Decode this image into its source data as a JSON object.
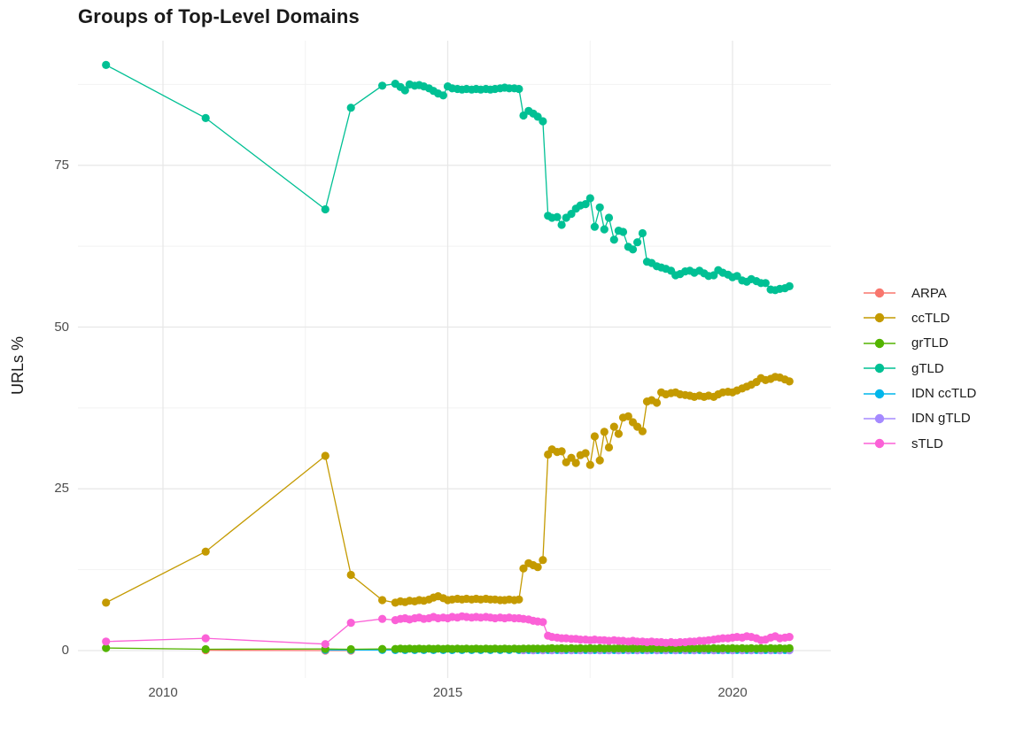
{
  "title": "Groups of Top-Level Domains",
  "chart_data": {
    "type": "line",
    "title": "Groups of Top-Level Domains",
    "xlabel": "",
    "ylabel": "URLs %",
    "x_ticks": [
      2010,
      2015,
      2020
    ],
    "x_minor_ticks": [
      2012.5,
      2017.5
    ],
    "y_ticks": [
      0,
      25,
      50,
      75
    ],
    "y_minor_ticks": [
      12.5,
      37.5,
      62.5,
      87.5
    ],
    "xlim": [
      2008.5,
      2021.75
    ],
    "ylim": [
      -3,
      94
    ],
    "grid": true,
    "legend_position": "right",
    "marker": "point-on-line",
    "draw_order": [
      "ARPA",
      "ccTLD",
      "IDN ccTLD",
      "IDN gTLD",
      "grTLD",
      "gTLD",
      "sTLD"
    ],
    "x": [
      2009,
      2010.75,
      2012.85,
      2013.3,
      2013.85,
      2014.08,
      2014.17,
      2014.25,
      2014.33,
      2014.42,
      2014.5,
      2014.58,
      2014.67,
      2014.75,
      2014.83,
      2014.92,
      2015,
      2015.08,
      2015.17,
      2015.25,
      2015.33,
      2015.42,
      2015.5,
      2015.58,
      2015.67,
      2015.75,
      2015.83,
      2015.92,
      2016,
      2016.08,
      2016.17,
      2016.25,
      2016.33,
      2016.42,
      2016.5,
      2016.58,
      2016.67,
      2016.76,
      2016.83,
      2016.92,
      2017,
      2017.08,
      2017.17,
      2017.25,
      2017.33,
      2017.42,
      2017.5,
      2017.58,
      2017.67,
      2017.75,
      2017.83,
      2017.92,
      2018,
      2018.08,
      2018.17,
      2018.25,
      2018.33,
      2018.42,
      2018.5,
      2018.58,
      2018.67,
      2018.75,
      2018.83,
      2018.92,
      2019,
      2019.08,
      2019.17,
      2019.25,
      2019.33,
      2019.42,
      2019.5,
      2019.58,
      2019.67,
      2019.75,
      2019.83,
      2019.92,
      2020,
      2020.08,
      2020.17,
      2020.25,
      2020.33,
      2020.42,
      2020.5,
      2020.58,
      2020.67,
      2020.75,
      2020.83,
      2020.92,
      2021
    ],
    "series": [
      {
        "name": "ARPA",
        "color": "#F8766D",
        "points": [
          [
            2010.75,
            0.05
          ],
          [
            2012.85,
            0.0
          ],
          [
            2013.3,
            0.0
          ]
        ]
      },
      {
        "name": "ccTLD",
        "color": "#C49A00",
        "y": [
          7.4,
          15.3,
          30.1,
          11.7,
          7.8,
          7.4,
          7.6,
          7.5,
          7.7,
          7.6,
          7.8,
          7.7,
          7.9,
          8.2,
          8.4,
          8.1,
          7.8,
          7.9,
          8.0,
          7.9,
          8.0,
          7.9,
          8.0,
          7.9,
          8.0,
          7.9,
          7.9,
          7.8,
          7.8,
          7.9,
          7.8,
          7.9,
          12.7,
          13.5,
          13.2,
          12.9,
          14.0,
          30.3,
          31.1,
          30.7,
          30.8,
          29.1,
          29.8,
          29.0,
          30.2,
          30.5,
          28.7,
          33.1,
          29.4,
          33.8,
          31.4,
          34.6,
          33.5,
          36.0,
          36.2,
          35.3,
          34.6,
          33.9,
          38.5,
          38.7,
          38.3,
          39.9,
          39.6,
          39.8,
          39.9,
          39.6,
          39.5,
          39.4,
          39.2,
          39.4,
          39.2,
          39.4,
          39.2,
          39.6,
          39.9,
          40.0,
          39.9,
          40.2,
          40.5,
          40.8,
          41.1,
          41.5,
          42.1,
          41.8,
          42.0,
          42.3,
          42.2,
          41.9,
          41.6
        ]
      },
      {
        "name": "grTLD",
        "color": "#53B400",
        "y": [
          0.4,
          0.2,
          0.25,
          0.2,
          0.25,
          0.25,
          0.3,
          0.25,
          0.3,
          0.25,
          0.3,
          0.25,
          0.3,
          0.25,
          0.3,
          0.25,
          0.3,
          0.25,
          0.3,
          0.25,
          0.3,
          0.25,
          0.3,
          0.25,
          0.3,
          0.25,
          0.3,
          0.25,
          0.3,
          0.25,
          0.3,
          0.25,
          0.3,
          0.3,
          0.3,
          0.3,
          0.3,
          0.3,
          0.35,
          0.3,
          0.35,
          0.3,
          0.35,
          0.3,
          0.35,
          0.3,
          0.35,
          0.3,
          0.35,
          0.3,
          0.35,
          0.3,
          0.35,
          0.3,
          0.35,
          0.3,
          0.35,
          0.3,
          0.35,
          0.3,
          0.35,
          0.3,
          0.35,
          0.3,
          0.35,
          0.3,
          0.35,
          0.3,
          0.35,
          0.3,
          0.35,
          0.3,
          0.35,
          0.3,
          0.35,
          0.3,
          0.35,
          0.3,
          0.35,
          0.3,
          0.35,
          0.3,
          0.35,
          0.3,
          0.35,
          0.3,
          0.35,
          0.3,
          0.35
        ]
      },
      {
        "name": "gTLD",
        "color": "#00C094",
        "y": [
          90.5,
          82.3,
          68.2,
          83.9,
          87.3,
          87.6,
          87.1,
          86.6,
          87.5,
          87.3,
          87.4,
          87.2,
          86.9,
          86.5,
          86.1,
          85.8,
          87.2,
          86.9,
          86.8,
          86.7,
          86.8,
          86.7,
          86.8,
          86.7,
          86.8,
          86.7,
          86.8,
          86.9,
          87.0,
          86.9,
          86.9,
          86.8,
          82.7,
          83.4,
          83.0,
          82.5,
          81.8,
          67.2,
          66.9,
          67.0,
          65.8,
          66.9,
          67.5,
          68.3,
          68.8,
          69.0,
          69.9,
          65.5,
          68.5,
          65.1,
          66.9,
          63.5,
          64.9,
          64.7,
          62.4,
          62.0,
          63.1,
          64.5,
          60.1,
          59.9,
          59.4,
          59.2,
          59.0,
          58.7,
          58.0,
          58.2,
          58.6,
          58.7,
          58.4,
          58.7,
          58.3,
          57.9,
          58.0,
          58.8,
          58.4,
          58.1,
          57.7,
          57.9,
          57.2,
          57.0,
          57.4,
          57.1,
          56.8,
          56.8,
          55.8,
          55.7,
          55.9,
          56.0,
          56.3
        ]
      },
      {
        "name": "IDN ccTLD",
        "color": "#00B6EB",
        "points": [
          [
            2012.85,
            0.1
          ],
          [
            2013.3,
            0.1
          ],
          [
            2013.85,
            0.1
          ],
          [
            2014.08,
            0.08
          ],
          [
            2014.25,
            0.08
          ],
          [
            2014.42,
            0.08
          ],
          [
            2014.58,
            0.08
          ],
          [
            2014.75,
            0.08
          ],
          [
            2014.92,
            0.08
          ],
          [
            2015.08,
            0.08
          ],
          [
            2015.25,
            0.08
          ],
          [
            2015.42,
            0.08
          ],
          [
            2015.58,
            0.08
          ],
          [
            2015.75,
            0.08
          ],
          [
            2015.92,
            0.08
          ],
          [
            2016.08,
            0.08
          ],
          [
            2016.25,
            0.08
          ],
          [
            2016.42,
            0.08
          ],
          [
            2016.58,
            0.08
          ],
          [
            2016.76,
            0.08
          ],
          [
            2016.92,
            0.08
          ],
          [
            2017.08,
            0.08
          ],
          [
            2017.25,
            0.08
          ],
          [
            2017.42,
            0.08
          ],
          [
            2017.58,
            0.08
          ],
          [
            2017.75,
            0.08
          ],
          [
            2017.92,
            0.08
          ],
          [
            2018.08,
            0.08
          ],
          [
            2018.25,
            0.08
          ],
          [
            2018.42,
            0.08
          ],
          [
            2018.58,
            0.08
          ],
          [
            2018.75,
            0.08
          ],
          [
            2018.92,
            0.08
          ],
          [
            2019.08,
            0.08
          ],
          [
            2019.25,
            0.08
          ],
          [
            2019.42,
            0.08
          ],
          [
            2019.58,
            0.08
          ],
          [
            2019.75,
            0.08
          ],
          [
            2019.92,
            0.08
          ],
          [
            2020.08,
            0.08
          ],
          [
            2020.25,
            0.08
          ],
          [
            2020.42,
            0.08
          ],
          [
            2020.58,
            0.08
          ],
          [
            2020.75,
            0.08
          ],
          [
            2020.92,
            0.08
          ]
        ]
      },
      {
        "name": "IDN gTLD",
        "color": "#A58AFF",
        "points": [
          [
            2016.33,
            0.07
          ],
          [
            2016.5,
            0.05
          ],
          [
            2016.67,
            0.05
          ],
          [
            2016.83,
            0.05
          ],
          [
            2017,
            0.05
          ],
          [
            2017.17,
            0.05
          ],
          [
            2017.33,
            0.05
          ],
          [
            2017.5,
            0.05
          ],
          [
            2017.67,
            0.05
          ],
          [
            2017.83,
            0.05
          ],
          [
            2018,
            0.05
          ],
          [
            2018.17,
            0.05
          ],
          [
            2018.33,
            0.05
          ],
          [
            2018.5,
            0.05
          ],
          [
            2018.67,
            0.05
          ],
          [
            2018.83,
            0.05
          ],
          [
            2019,
            0.05
          ],
          [
            2019.17,
            0.05
          ],
          [
            2019.33,
            0.05
          ],
          [
            2019.5,
            0.05
          ],
          [
            2019.67,
            0.05
          ],
          [
            2019.83,
            0.05
          ],
          [
            2020,
            0.05
          ],
          [
            2020.17,
            0.05
          ],
          [
            2020.33,
            0.05
          ],
          [
            2020.5,
            0.05
          ],
          [
            2020.67,
            0.05
          ],
          [
            2020.83,
            0.05
          ],
          [
            2021,
            0.05
          ]
        ]
      },
      {
        "name": "sTLD",
        "color": "#FB61D7",
        "y": [
          1.4,
          1.9,
          1.0,
          4.3,
          4.9,
          4.7,
          4.9,
          5.0,
          4.8,
          5.0,
          5.1,
          4.9,
          5.0,
          5.2,
          5.0,
          5.1,
          5.0,
          5.2,
          5.1,
          5.3,
          5.2,
          5.1,
          5.2,
          5.1,
          5.2,
          5.1,
          5.0,
          5.1,
          5.0,
          5.1,
          5.0,
          5.0,
          4.9,
          4.8,
          4.6,
          4.5,
          4.4,
          2.3,
          2.1,
          2.0,
          1.9,
          1.9,
          1.8,
          1.8,
          1.7,
          1.7,
          1.6,
          1.7,
          1.6,
          1.6,
          1.5,
          1.6,
          1.5,
          1.5,
          1.4,
          1.5,
          1.4,
          1.4,
          1.3,
          1.4,
          1.3,
          1.3,
          1.2,
          1.3,
          1.2,
          1.3,
          1.3,
          1.4,
          1.4,
          1.5,
          1.5,
          1.6,
          1.7,
          1.8,
          1.9,
          1.9,
          2.0,
          2.1,
          2.0,
          2.2,
          2.1,
          1.9,
          1.6,
          1.7,
          2.0,
          2.2,
          1.9,
          2.0,
          2.1
        ]
      }
    ],
    "style": {
      "major_grid_color": "#E7E7E7",
      "minor_grid_color": "#F2F2F2",
      "background": "#ffffff",
      "tick_label_color": "#4d4d4d",
      "title_color": "#1a1a1a"
    }
  }
}
